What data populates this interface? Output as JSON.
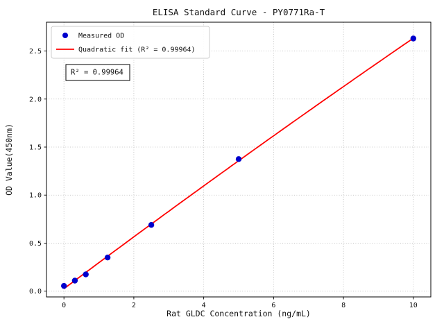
{
  "chart_data": {
    "type": "scatter",
    "title": "ELISA Standard Curve - PY0771Ra-T",
    "xlabel": "Rat GLDC Concentration (ng/mL)",
    "ylabel": "OD Value(450nm)",
    "annotation": "R² = 0.99964",
    "legend_position": "upper left",
    "grid": true,
    "xlim": [
      -0.5,
      10.5
    ],
    "ylim": [
      -0.06,
      2.8
    ],
    "xticks": [
      0,
      2,
      4,
      6,
      8,
      10
    ],
    "yticks": [
      0.0,
      0.5,
      1.0,
      1.5,
      2.0,
      2.5
    ],
    "series": [
      {
        "name": "Measured OD",
        "type": "scatter",
        "color": "#0000cd",
        "x": [
          0,
          0.3125,
          0.625,
          1.25,
          2.5,
          5,
          10
        ],
        "y": [
          0.055,
          0.11,
          0.175,
          0.35,
          0.69,
          1.375,
          2.63
        ]
      },
      {
        "name": "Quadratic fit (R² = 0.99964)",
        "type": "line",
        "color": "#ff0000",
        "fit": "quadratic",
        "r_squared": 0.99964
      }
    ]
  }
}
